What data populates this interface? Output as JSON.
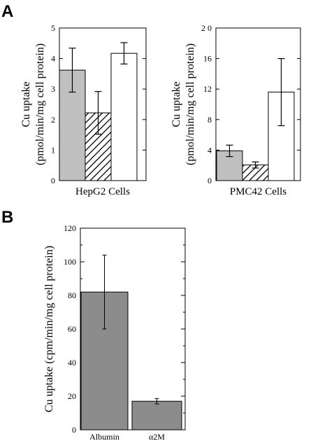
{
  "panels": [
    "A",
    "B"
  ],
  "chart_data": [
    {
      "type": "bar",
      "panel": "A",
      "categories": [
        "HepG2 Cells"
      ],
      "ylabel_line1": "Cu uptake",
      "ylabel_line2": "(pmol/min/mg cell protein)",
      "ylim": [
        0,
        5
      ],
      "yticks": [
        0,
        1,
        2,
        3,
        4,
        5
      ],
      "ytick_labels": [
        "0",
        "1",
        "2",
        "3",
        "4",
        "5"
      ],
      "series": [
        {
          "fill": "#c0c0c0",
          "pattern": "solid",
          "values": [
            3.62
          ],
          "err": [
            0.72
          ]
        },
        {
          "fill": "#ffffff",
          "pattern": "hatch",
          "values": [
            2.22
          ],
          "err": [
            0.7
          ]
        },
        {
          "fill": "#ffffff",
          "pattern": "solid",
          "values": [
            4.17
          ],
          "err": [
            0.35
          ]
        }
      ],
      "grid": false
    },
    {
      "type": "bar",
      "panel": "A",
      "categories": [
        "PMC42 Cells"
      ],
      "ylabel_line1": "Cu uptake",
      "ylabel_line2": "(pmol/min/mg cell protein)",
      "ylim": [
        0,
        20
      ],
      "yticks": [
        0,
        4,
        8,
        12,
        16,
        20
      ],
      "ytick_labels": [
        "0",
        "4",
        "8",
        "12",
        "16",
        "2 0"
      ],
      "series": [
        {
          "fill": "#c0c0c0",
          "pattern": "solid",
          "values": [
            3.9
          ],
          "err": [
            0.75
          ]
        },
        {
          "fill": "#ffffff",
          "pattern": "hatch",
          "values": [
            2.05
          ],
          "err": [
            0.4
          ]
        },
        {
          "fill": "#ffffff",
          "pattern": "solid",
          "values": [
            11.6
          ],
          "err": [
            4.4
          ]
        }
      ],
      "grid": false
    },
    {
      "type": "bar",
      "panel": "B",
      "categories": [
        "Albumin",
        "α2M"
      ],
      "values": [
        82,
        17
      ],
      "err": [
        22,
        1.6
      ],
      "ylabel": "Cu uptake (cpm/min/mg cell protein)",
      "ylim": [
        0,
        120
      ],
      "yticks": [
        0,
        20,
        40,
        60,
        80,
        100,
        120
      ],
      "ytick_labels": [
        "0",
        "20",
        "40",
        "60",
        "80",
        "100",
        "120"
      ],
      "fill": "#8c8c8c",
      "grid": false
    }
  ]
}
